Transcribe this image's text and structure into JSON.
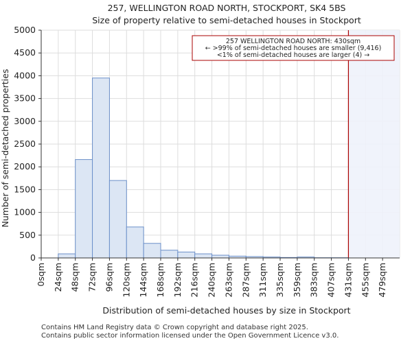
{
  "chart_data": {
    "type": "bar",
    "title": "257, WELLINGTON ROAD NORTH, STOCKPORT, SK4 5BS",
    "subtitle": "Size of property relative to semi-detached houses in Stockport",
    "xlabel": "Distribution of semi-detached houses by size in Stockport",
    "ylabel": "Number of semi-detached properties",
    "categories": [
      "0sqm",
      "24sqm",
      "48sqm",
      "72sqm",
      "96sqm",
      "120sqm",
      "144sqm",
      "168sqm",
      "192sqm",
      "216sqm",
      "240sqm",
      "263sqm",
      "287sqm",
      "311sqm",
      "335sqm",
      "359sqm",
      "383sqm",
      "407sqm",
      "431sqm",
      "455sqm",
      "479sqm"
    ],
    "values": [
      0,
      90,
      2160,
      3950,
      1700,
      680,
      320,
      170,
      130,
      90,
      60,
      40,
      30,
      20,
      10,
      20,
      5,
      5,
      0,
      0,
      0
    ],
    "yticks": [
      0,
      500,
      1000,
      1500,
      2000,
      2500,
      3000,
      3500,
      4000,
      4500,
      5000
    ],
    "ylim": [
      0,
      5000
    ],
    "bar_color": "#dce6f4",
    "bar_edge": "#6b8fc9",
    "marker_color": "#aa0000",
    "marker_value_index": 18,
    "annotation": {
      "line1": "257 WELLINGTON ROAD NORTH: 430sqm",
      "line2": "← >99% of semi-detached houses are smaller (9,416)",
      "line3": "<1% of semi-detached houses are larger (4) →"
    },
    "grid": true
  },
  "footer": {
    "line1": "Contains HM Land Registry data © Crown copyright and database right 2025.",
    "line2": "Contains public sector information licensed under the Open Government Licence v3.0."
  }
}
